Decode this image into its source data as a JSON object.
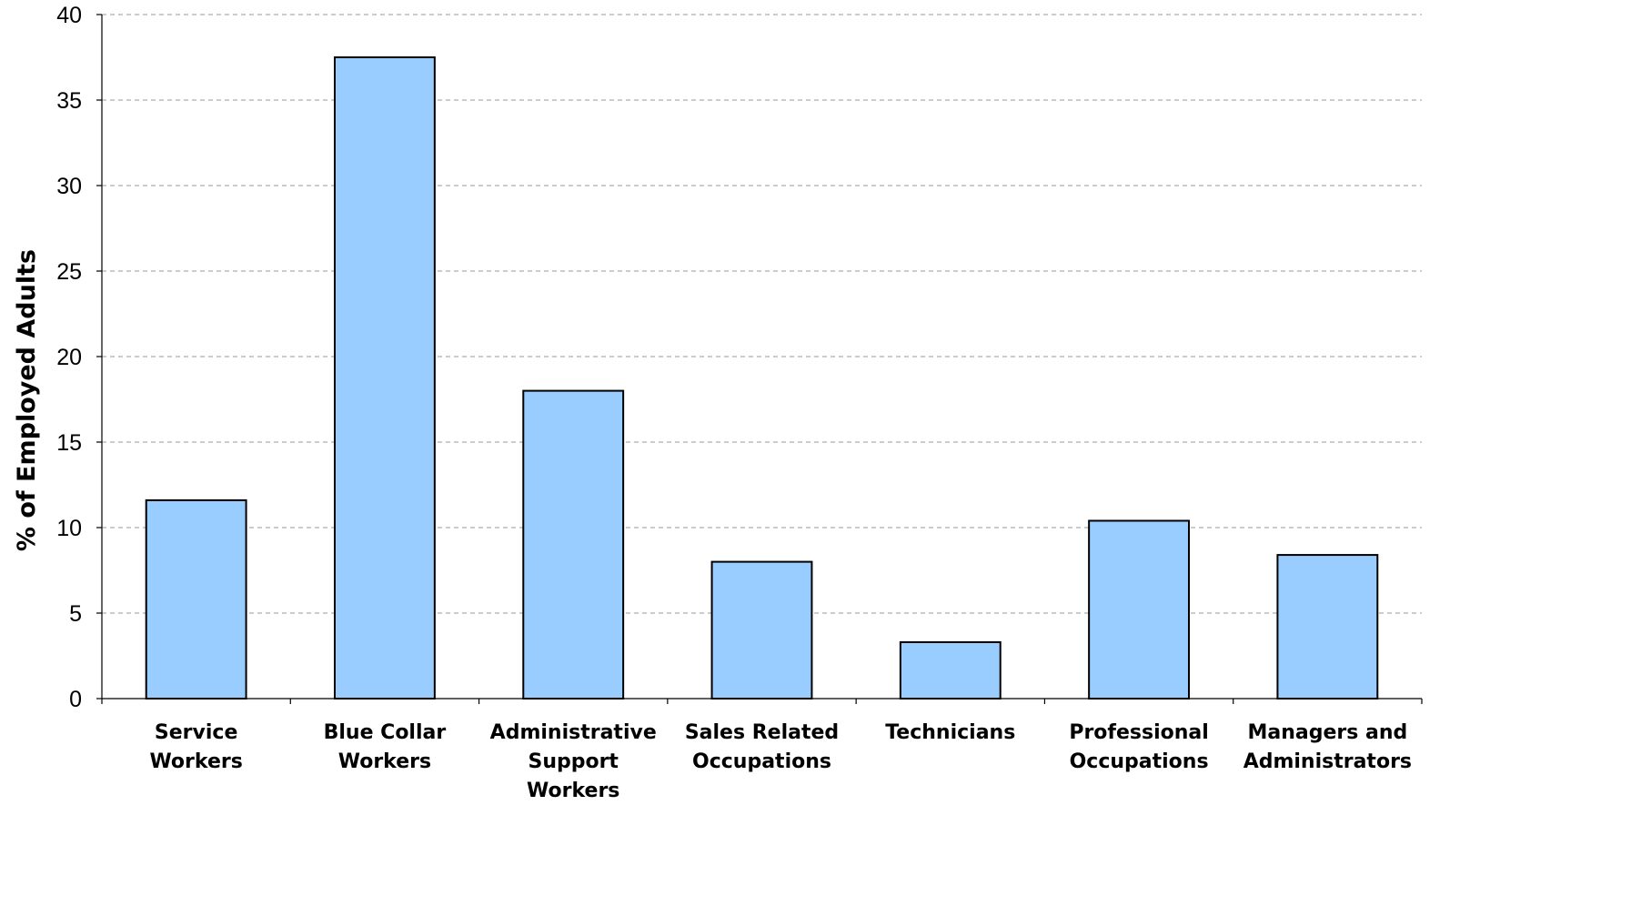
{
  "chart_data": {
    "type": "bar",
    "title": "",
    "xlabel": "",
    "ylabel": "% of Employed Adults",
    "ylim": [
      0,
      40
    ],
    "yticks": [
      0,
      5,
      10,
      15,
      20,
      25,
      30,
      35,
      40
    ],
    "grid": true,
    "legend": "none",
    "categories": [
      [
        "Service",
        "Workers"
      ],
      [
        "Blue Collar",
        "Workers"
      ],
      [
        "Administrative",
        "Support",
        "Workers"
      ],
      [
        "Sales Related",
        "Occupations"
      ],
      [
        "Technicians"
      ],
      [
        "Professional",
        "Occupations"
      ],
      [
        "Managers and",
        "Administrators"
      ]
    ],
    "values": [
      11.6,
      37.5,
      18.0,
      8.0,
      3.3,
      10.4,
      8.4
    ],
    "colors": {
      "bar_fill": "#99CCFF",
      "bar_stroke": "#000000",
      "grid": "#999999",
      "axis": "#000000"
    }
  }
}
